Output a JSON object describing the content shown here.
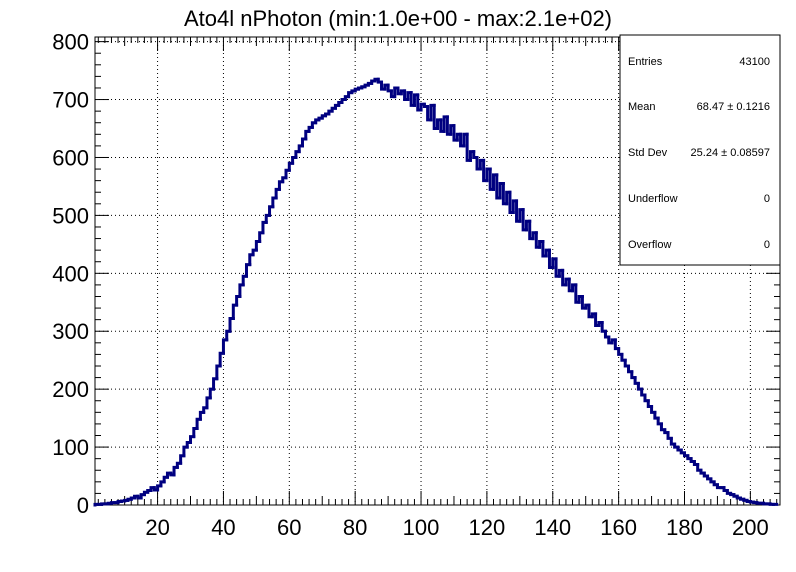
{
  "chart_data": {
    "type": "histogram",
    "title": "Ato4l nPhoton (min:1.0e+00 - max:2.1e+02)",
    "xlabel": "",
    "ylabel": "",
    "xlim": [
      1,
      209
    ],
    "ylim": [
      0,
      808
    ],
    "xticks": [
      20,
      40,
      60,
      80,
      100,
      120,
      140,
      160,
      180,
      200
    ],
    "yticks": [
      0,
      100,
      200,
      300,
      400,
      500,
      600,
      700,
      800
    ],
    "grid": true,
    "line_color": "#000080",
    "bin_width": 1,
    "x": [
      1,
      2,
      3,
      4,
      5,
      6,
      7,
      8,
      9,
      10,
      11,
      12,
      13,
      14,
      15,
      16,
      17,
      18,
      19,
      20,
      21,
      22,
      23,
      24,
      25,
      26,
      27,
      28,
      29,
      30,
      31,
      32,
      33,
      34,
      35,
      36,
      37,
      38,
      39,
      40,
      41,
      42,
      43,
      44,
      45,
      46,
      47,
      48,
      49,
      50,
      51,
      52,
      53,
      54,
      55,
      56,
      57,
      58,
      59,
      60,
      61,
      62,
      63,
      64,
      65,
      66,
      67,
      68,
      69,
      70,
      71,
      72,
      73,
      74,
      75,
      76,
      77,
      78,
      79,
      80,
      81,
      82,
      83,
      84,
      85,
      86,
      87,
      88,
      89,
      90,
      91,
      92,
      93,
      94,
      95,
      96,
      97,
      98,
      99,
      100,
      101,
      102,
      103,
      104,
      105,
      106,
      107,
      108,
      109,
      110,
      111,
      112,
      113,
      114,
      115,
      116,
      117,
      118,
      119,
      120,
      121,
      122,
      123,
      124,
      125,
      126,
      127,
      128,
      129,
      130,
      131,
      132,
      133,
      134,
      135,
      136,
      137,
      138,
      139,
      140,
      141,
      142,
      143,
      144,
      145,
      146,
      147,
      148,
      149,
      150,
      151,
      152,
      153,
      154,
      155,
      156,
      157,
      158,
      159,
      160,
      161,
      162,
      163,
      164,
      165,
      166,
      167,
      168,
      169,
      170,
      171,
      172,
      173,
      174,
      175,
      176,
      177,
      178,
      179,
      180,
      181,
      182,
      183,
      184,
      185,
      186,
      187,
      188,
      189,
      190,
      191,
      192,
      193,
      194,
      195,
      196,
      197,
      198,
      199,
      200,
      201,
      202,
      203,
      204,
      205,
      206,
      207,
      208
    ],
    "values": [
      1,
      1,
      2,
      2,
      3,
      4,
      4,
      6,
      7,
      8,
      10,
      12,
      15,
      12,
      18,
      22,
      25,
      30,
      26,
      33,
      40,
      48,
      55,
      52,
      65,
      72,
      85,
      100,
      108,
      118,
      132,
      148,
      160,
      168,
      185,
      200,
      218,
      240,
      262,
      285,
      300,
      322,
      345,
      360,
      380,
      395,
      415,
      432,
      440,
      455,
      470,
      488,
      500,
      515,
      530,
      545,
      558,
      565,
      578,
      590,
      600,
      610,
      620,
      632,
      645,
      652,
      660,
      665,
      668,
      672,
      675,
      680,
      685,
      690,
      695,
      700,
      705,
      712,
      715,
      718,
      720,
      722,
      725,
      728,
      732,
      735,
      730,
      718,
      725,
      715,
      705,
      720,
      710,
      715,
      700,
      712,
      690,
      708,
      682,
      692,
      688,
      665,
      690,
      650,
      665,
      645,
      670,
      640,
      655,
      630,
      640,
      620,
      640,
      595,
      610,
      600,
      580,
      595,
      560,
      580,
      545,
      570,
      530,
      555,
      520,
      540,
      505,
      525,
      490,
      510,
      475,
      490,
      460,
      470,
      445,
      455,
      430,
      440,
      410,
      425,
      395,
      405,
      380,
      390,
      370,
      380,
      350,
      360,
      340,
      345,
      325,
      330,
      310,
      315,
      300,
      290,
      280,
      285,
      270,
      260,
      250,
      240,
      230,
      220,
      210,
      200,
      190,
      180,
      170,
      160,
      150,
      140,
      130,
      125,
      115,
      105,
      100,
      95,
      90,
      85,
      80,
      75,
      70,
      60,
      55,
      50,
      45,
      40,
      35,
      30,
      30,
      25,
      20,
      18,
      15,
      12,
      10,
      8,
      6,
      5,
      4,
      3,
      3,
      2,
      2,
      1,
      1
    ]
  },
  "stats": {
    "entries_label": "Entries",
    "entries_value": "43100",
    "mean_label": "Mean",
    "mean_value": "68.47 ± 0.1216",
    "stddev_label": "Std Dev",
    "stddev_value": "25.24 ± 0.08597",
    "underflow_label": "Underflow",
    "underflow_value": "0",
    "overflow_label": "Overflow",
    "overflow_value": "0"
  }
}
